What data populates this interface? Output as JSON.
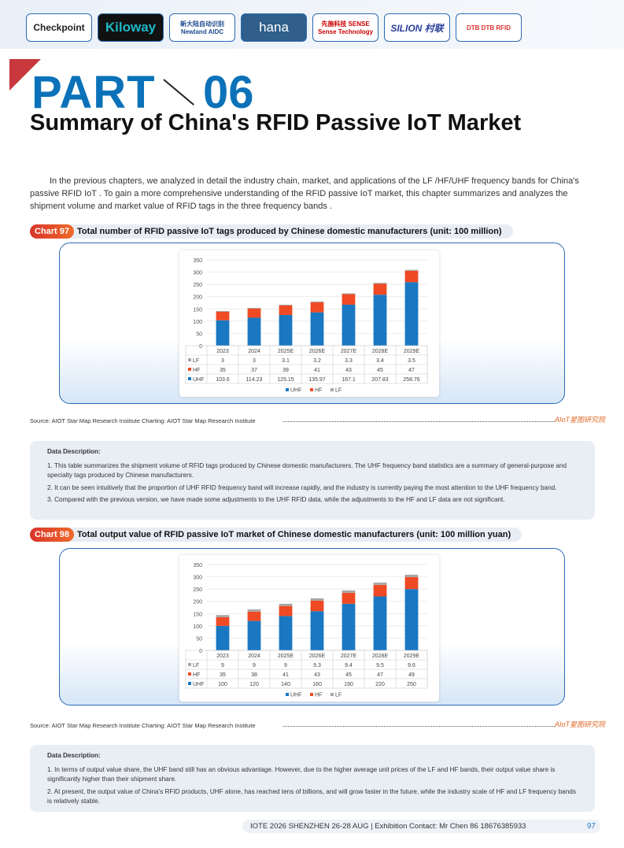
{
  "logos": [
    "Checkpoint",
    "Kiloway",
    "新大陆自动识别 Newland AIDC",
    "hana",
    "先施科技 SENSE Sense Technology",
    "SILION 村联",
    "DTB DTB RFID"
  ],
  "header": {
    "part": "PART",
    "number": "06",
    "title": "Summary of China's RFID Passive IoT Market"
  },
  "intro": "In the previous chapters, we analyzed in detail the industry chain, market, and applications of the LF /HF/UHF frequency bands for China's passive RFID IoT . To gain a more comprehensive understanding of the RFID passive IoT market, this chapter summarizes and analyzes the shipment volume and market value of RFID tags in the three frequency bands .",
  "colors": {
    "UHF": "#1a78c2",
    "HF": "#f04a24",
    "LF": "#a6a6a6",
    "accent": "#0b72b9"
  },
  "chart97": {
    "tag": "Chart 97",
    "title": "Total number of RFID passive IoT tags produced by Chinese domestic manufacturers (unit: 100 million)",
    "source": "Source: AIOT Star Map Research Institute  Charting: AIOT Star Map Research Institute",
    "watermark": "AIoT星图研究院"
  },
  "chart98": {
    "tag": "Chart 98",
    "title": "Total output value of RFID passive IoT market of Chinese domestic manufacturers (unit: 100 million yuan)",
    "source": "Source: AIOT Star Map Research Institute  Charting: AIOT Star Map Research Institute",
    "watermark": "AIoT星图研究院"
  },
  "chart_data": [
    {
      "type": "bar",
      "stacked": true,
      "categories": [
        "2023",
        "2024",
        "2025E",
        "2026E",
        "2027E",
        "2028E",
        "2029E"
      ],
      "ylim": [
        0,
        350
      ],
      "yticks": [
        0,
        50,
        100,
        150,
        200,
        250,
        300,
        350
      ],
      "grid": true,
      "legend": "bottom",
      "series": [
        {
          "name": "UHF",
          "values": [
            103.6,
            114.23,
            125.15,
            135.97,
            167.1,
            207.83,
            258.76
          ],
          "labels": [
            "103.6",
            "114.23",
            "125.15",
            "135.97",
            "167.1",
            "207.83",
            "258.76"
          ]
        },
        {
          "name": "HF",
          "values": [
            35,
            37,
            39,
            41,
            43,
            45,
            47
          ],
          "labels": [
            "35",
            "37",
            "39",
            "41",
            "43",
            "45",
            "47"
          ]
        },
        {
          "name": "LF",
          "values": [
            3,
            3,
            3.1,
            3.2,
            3.3,
            3.4,
            3.5
          ],
          "labels": [
            "3",
            "3",
            "3.1",
            "3.2",
            "3.3",
            "3.4",
            "3.5"
          ]
        }
      ]
    },
    {
      "type": "bar",
      "stacked": true,
      "categories": [
        "2023",
        "2024",
        "2025E",
        "2026E",
        "2027E",
        "2028E",
        "2029E"
      ],
      "ylim": [
        0,
        350
      ],
      "yticks": [
        0,
        50,
        100,
        150,
        200,
        250,
        300,
        350
      ],
      "grid": true,
      "legend": "bottom",
      "series": [
        {
          "name": "UHF",
          "values": [
            100,
            120,
            140,
            160,
            190,
            220,
            250
          ],
          "labels": [
            "100",
            "120",
            "140",
            "160",
            "190",
            "220",
            "250"
          ]
        },
        {
          "name": "HF",
          "values": [
            35,
            38,
            41,
            43,
            45,
            47,
            49
          ],
          "labels": [
            "35",
            "38",
            "41",
            "43",
            "45",
            "47",
            "49"
          ]
        },
        {
          "name": "LF",
          "values": [
            9,
            9,
            9,
            9.3,
            9.4,
            9.5,
            9.6
          ],
          "labels": [
            "9",
            "9",
            "9",
            "9.3",
            "9.4",
            "9.5",
            "9.6"
          ]
        }
      ]
    }
  ],
  "desc1": {
    "heading": "Data Description:",
    "items": [
      "1. This table summarizes the shipment volume of RFID tags produced by Chinese domestic manufacturers. The UHF frequency band statistics are a summary of general-purpose and specialty tags produced by Chinese manufacturers.",
      "2. It can be seen intuitively that the proportion of UHF RFID frequency band will increase rapidly, and the industry is currently paying the most attention to the UHF frequency band.",
      "3. Compared with the previous version, we have made some adjustments to the UHF RFID data, while the adjustments to the HF and LF data are not significant."
    ]
  },
  "desc2": {
    "heading": "Data Description:",
    "items": [
      "1. In terms of output value share, the UHF band still has an obvious advantage. However, due to the higher average unit prices of the LF and HF bands, their output value share is significantly higher than their shipment share.",
      "2. At present, the output value of China's RFID products, UHF alone, has reached tens of billions, and will grow faster in the future, while the industry scale of HF and LF frequency bands is relatively stable."
    ]
  },
  "footer": {
    "text": "IOTE 2026 SHENZHEN 26-28 AUG  | Exhibition Contact:  Mr Chen 86 18676385933",
    "page": "97"
  }
}
